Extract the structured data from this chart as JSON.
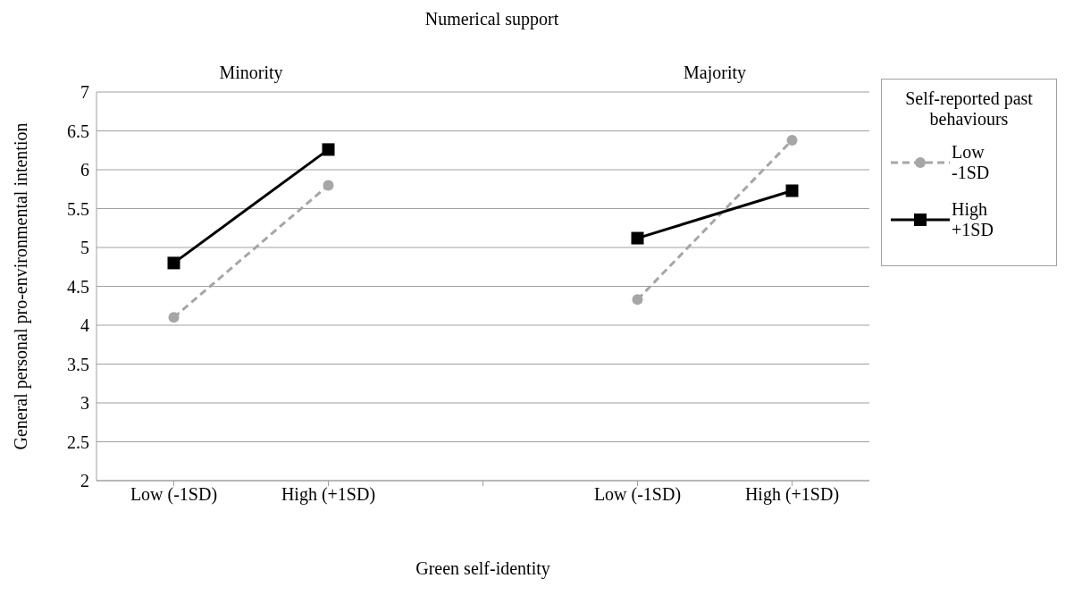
{
  "chart_data": {
    "type": "line",
    "title": "Numerical support",
    "xlabel": "Green self-identity",
    "ylabel": "General personal pro-environmental intention",
    "legend_title": "Self-reported past behaviours",
    "annotations": [
      "Minority",
      "Majority"
    ],
    "categories": [
      "Low (-1SD)",
      "High (+1SD)",
      null,
      "Low (-1SD)",
      "High (+1SD)"
    ],
    "series": [
      {
        "name": "Low -1SD",
        "color": "#a6a6a6",
        "values": [
          4.1,
          5.8,
          null,
          4.33,
          6.38
        ],
        "marker": "circle",
        "line_style": "dashed"
      },
      {
        "name": "High +1SD",
        "color": "#000000",
        "values": [
          4.8,
          6.26,
          null,
          5.12,
          5.73
        ],
        "marker": "square",
        "line_style": "solid"
      }
    ],
    "ylim": [
      2,
      7
    ],
    "yticks": [
      2,
      2.5,
      3,
      3.5,
      4,
      4.5,
      5,
      5.5,
      6,
      6.5,
      7
    ],
    "grid": "y",
    "legend": "right"
  }
}
